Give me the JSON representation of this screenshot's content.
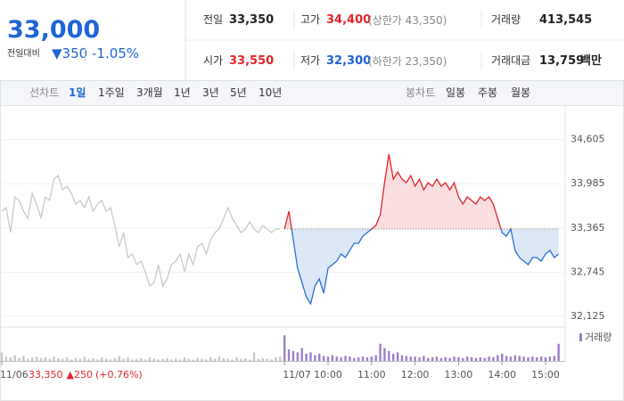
{
  "quote": {
    "price": "33,000",
    "change_label": "전일대비",
    "change": "▼350",
    "change_pct": "-1.05%",
    "stats": [
      {
        "label": "전일",
        "value": "33,350"
      },
      {
        "label": "고가",
        "value": "34,400",
        "note": "(상한가 43,350)"
      },
      {
        "label": "거래량",
        "value": "413,545"
      },
      {
        "label": "시가",
        "value": "33,550"
      },
      {
        "label": "저가",
        "value": "32,300",
        "note": "(하한가 23,350)"
      },
      {
        "label": "거래대금",
        "value": "13,759",
        "unit": "백만"
      }
    ]
  },
  "tabs": {
    "line_label": "선차트",
    "line": [
      "1일",
      "1주일",
      "3개월",
      "1년",
      "3년",
      "5년",
      "10년"
    ],
    "candle_label": "봉차트",
    "candle": [
      "일봉",
      "주봉",
      "월봉"
    ]
  },
  "prev_day": {
    "close": "33,350",
    "change": "▲250",
    "change_pct": "(+0.76%)"
  },
  "chart_data": {
    "type": "line",
    "categories": [
      "11/06",
      null,
      null,
      null,
      null,
      null,
      null,
      null,
      null,
      null,
      null,
      null,
      null,
      null,
      null,
      null,
      null,
      null,
      null,
      null,
      null,
      null,
      null,
      null,
      null,
      null,
      null,
      null,
      null,
      null,
      null,
      null,
      null,
      null,
      null,
      null,
      null,
      null,
      null,
      null,
      null,
      null,
      null,
      null,
      null,
      null,
      null,
      null,
      null,
      null,
      null,
      null,
      null,
      null,
      null,
      null,
      null,
      null,
      null,
      null,
      null,
      null,
      null,
      null,
      null,
      "11/07",
      null,
      null,
      null,
      null,
      null,
      null,
      null,
      null,
      null,
      "10:00",
      null,
      null,
      null,
      null,
      null,
      null,
      null,
      null,
      null,
      "11:00",
      null,
      null,
      null,
      null,
      null,
      null,
      null,
      null,
      null,
      "12:00",
      null,
      null,
      null,
      null,
      null,
      null,
      null,
      null,
      null,
      "13:00",
      null,
      null,
      null,
      null,
      null,
      null,
      null,
      null,
      null,
      "14:00",
      null,
      null,
      null,
      null,
      null,
      null,
      null,
      null,
      null,
      "15:00",
      null,
      null,
      null
    ],
    "series": [
      {
        "color": "#c8c8c8",
        "values": [
          33600,
          33650,
          33300,
          33800,
          33750,
          33600,
          33500,
          33850,
          33700,
          33500,
          33800,
          33750,
          34050,
          34100,
          33900,
          33950,
          33850,
          33700,
          33750,
          33650,
          33800,
          33600,
          33700,
          33750,
          33600,
          33650,
          33400,
          33100,
          33300,
          32950,
          33000,
          32850,
          32900,
          32750,
          32550,
          32600,
          32850,
          32550,
          32650,
          32850,
          32900,
          33000,
          32750,
          33000,
          32850,
          33100,
          33150,
          33000,
          33200,
          33300,
          33350,
          33500,
          33650,
          33500,
          33400,
          33300,
          33350,
          33450,
          33350,
          33300,
          33400,
          33350,
          33300,
          33350,
          33350,
          null,
          null,
          null,
          null,
          null,
          null,
          null,
          null,
          null,
          null,
          null,
          null,
          null,
          null,
          null,
          null,
          null,
          null,
          null,
          null,
          null,
          null,
          null,
          null,
          null,
          null,
          null,
          null,
          null,
          null,
          null,
          null,
          null,
          null,
          null,
          null,
          null,
          null,
          null,
          null,
          null,
          null,
          null,
          null,
          null,
          null,
          null,
          null,
          null,
          null,
          null,
          null,
          null,
          null,
          null,
          null,
          null,
          null,
          null,
          null,
          null,
          null,
          null,
          null
        ]
      },
      {
        "color": "#e0262b",
        "color_below": "#2a6fd6",
        "fill_color": "#fbdfe0",
        "fill_color_below": "#dde8f7",
        "values": [
          null,
          null,
          null,
          null,
          null,
          null,
          null,
          null,
          null,
          null,
          null,
          null,
          null,
          null,
          null,
          null,
          null,
          null,
          null,
          null,
          null,
          null,
          null,
          null,
          null,
          null,
          null,
          null,
          null,
          null,
          null,
          null,
          null,
          null,
          null,
          null,
          null,
          null,
          null,
          null,
          null,
          null,
          null,
          null,
          null,
          null,
          null,
          null,
          null,
          null,
          null,
          null,
          null,
          null,
          null,
          null,
          null,
          null,
          null,
          null,
          null,
          null,
          null,
          null,
          null,
          33350,
          33600,
          33200,
          32800,
          32600,
          32400,
          32300,
          32550,
          32650,
          32450,
          32800,
          32850,
          32900,
          33000,
          32950,
          33050,
          33150,
          33150,
          33250,
          33300,
          33350,
          33400,
          33550,
          34000,
          34400,
          34050,
          34150,
          34050,
          34000,
          34100,
          33950,
          34050,
          33900,
          34000,
          33950,
          34050,
          33950,
          34000,
          33900,
          34000,
          33800,
          33700,
          33800,
          33750,
          33700,
          33800,
          33750,
          33800,
          33700,
          33500,
          33300,
          33250,
          33350,
          33050,
          32950,
          32900,
          32850,
          32950,
          32950,
          32900,
          33000,
          33050,
          32950,
          33000
        ]
      }
    ],
    "reference": 33350,
    "ylim": [
      32000,
      35000
    ],
    "yticks": [
      {
        "value": 34605,
        "label": "34,605"
      },
      {
        "value": 33985,
        "label": "33,985"
      },
      {
        "value": 33365,
        "label": "33,365"
      },
      {
        "value": 32745,
        "label": "32,745"
      },
      {
        "value": 32125,
        "label": "32,125"
      }
    ],
    "grid": true,
    "volume": {
      "name": "거래량",
      "color": "#9b80c9",
      "ylim": [
        0,
        20000
      ],
      "values": [
        6000,
        3000,
        2500,
        4000,
        2000,
        3500,
        1500,
        2500,
        3000,
        2000,
        2500,
        1500,
        3000,
        2000,
        1500,
        2500,
        1000,
        2000,
        1500,
        3000,
        1500,
        2000,
        1000,
        2500,
        1500,
        1000,
        2000,
        3500,
        1500,
        2500,
        1000,
        1500,
        2000,
        1000,
        2500,
        1500,
        1000,
        1500,
        2000,
        1000,
        1500,
        1000,
        2500,
        1500,
        1000,
        2000,
        1500,
        1000,
        2500,
        1500,
        3000,
        2000,
        1500,
        1000,
        2500,
        1500,
        2000,
        1000,
        6000,
        1500,
        2000,
        1500,
        1000,
        2500,
        3000,
        18000,
        8000,
        7000,
        6000,
        9000,
        5000,
        6000,
        4000,
        5000,
        3500,
        3000,
        4000,
        3000,
        2500,
        3500,
        3000,
        2000,
        2500,
        3000,
        2500,
        3000,
        4000,
        12000,
        9000,
        7000,
        5000,
        6000,
        4000,
        3500,
        3000,
        3000,
        2500,
        3500,
        2000,
        2500,
        3000,
        2000,
        2500,
        2000,
        3000,
        2500,
        2000,
        3000,
        2500,
        2000,
        2500,
        2000,
        3000,
        2500,
        4000,
        5000,
        3500,
        3000,
        4000,
        3500,
        3000,
        2500,
        3000,
        2500,
        3000,
        2500,
        3000,
        3500,
        12000
      ]
    }
  }
}
